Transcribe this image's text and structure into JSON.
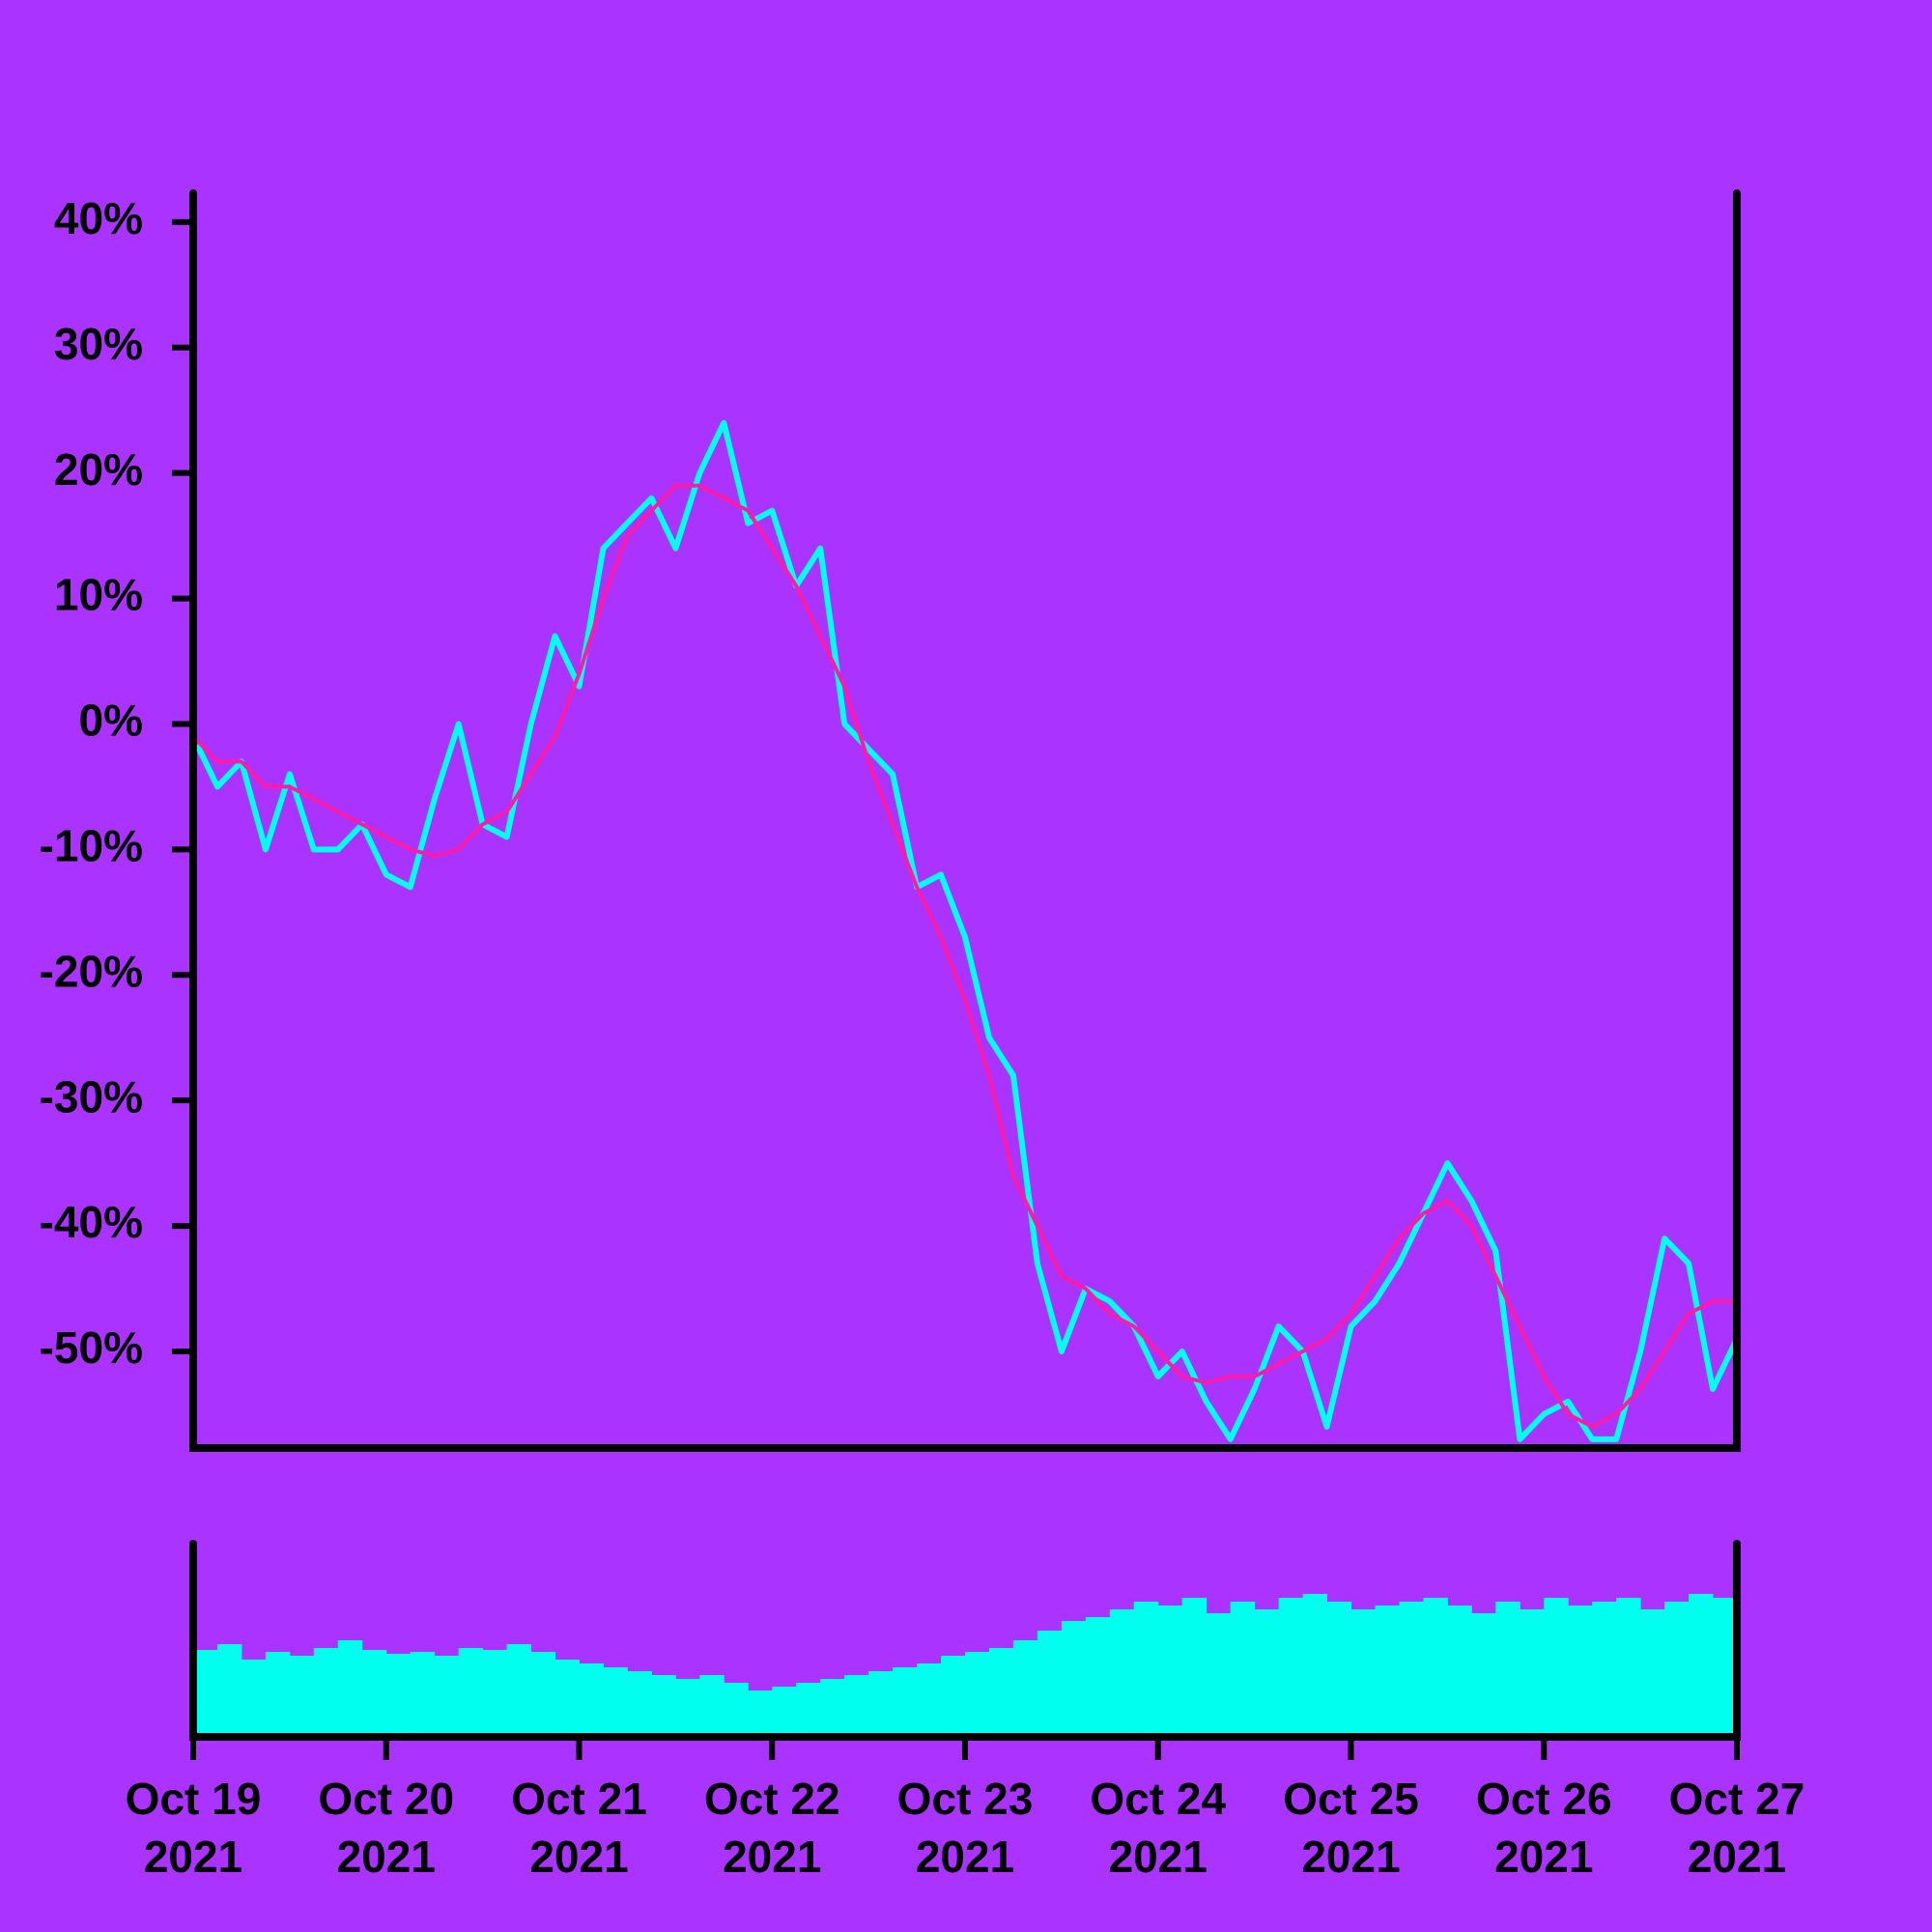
{
  "chart_data": [
    {
      "type": "line",
      "x": [
        "2021-10-19T00:00",
        "2021-10-19T03:00",
        "2021-10-19T06:00",
        "2021-10-19T09:00",
        "2021-10-19T12:00",
        "2021-10-19T15:00",
        "2021-10-19T18:00",
        "2021-10-19T21:00",
        "2021-10-20T00:00",
        "2021-10-20T03:00",
        "2021-10-20T06:00",
        "2021-10-20T09:00",
        "2021-10-20T12:00",
        "2021-10-20T15:00",
        "2021-10-20T18:00",
        "2021-10-20T21:00",
        "2021-10-21T00:00",
        "2021-10-21T03:00",
        "2021-10-21T06:00",
        "2021-10-21T09:00",
        "2021-10-21T12:00",
        "2021-10-21T15:00",
        "2021-10-21T18:00",
        "2021-10-21T21:00",
        "2021-10-22T00:00",
        "2021-10-22T03:00",
        "2021-10-22T06:00",
        "2021-10-22T09:00",
        "2021-10-22T12:00",
        "2021-10-22T15:00",
        "2021-10-22T18:00",
        "2021-10-22T21:00",
        "2021-10-23T00:00",
        "2021-10-23T03:00",
        "2021-10-23T06:00",
        "2021-10-23T09:00",
        "2021-10-23T12:00",
        "2021-10-23T15:00",
        "2021-10-23T18:00",
        "2021-10-23T21:00",
        "2021-10-24T00:00",
        "2021-10-24T03:00",
        "2021-10-24T06:00",
        "2021-10-24T09:00",
        "2021-10-24T12:00",
        "2021-10-24T15:00",
        "2021-10-24T18:00",
        "2021-10-24T21:00",
        "2021-10-25T00:00",
        "2021-10-25T03:00",
        "2021-10-25T06:00",
        "2021-10-25T09:00",
        "2021-10-25T12:00",
        "2021-10-25T15:00",
        "2021-10-25T18:00",
        "2021-10-25T21:00",
        "2021-10-26T00:00",
        "2021-10-26T03:00",
        "2021-10-26T06:00",
        "2021-10-26T09:00",
        "2021-10-26T12:00",
        "2021-10-26T15:00",
        "2021-10-26T18:00",
        "2021-10-26T21:00",
        "2021-10-27T00:00"
      ],
      "series": [
        {
          "color": "#00ffee",
          "values": [
            -1,
            -5,
            -3,
            -10,
            -4,
            -10,
            -10,
            -8,
            -12,
            -13,
            -6,
            0,
            -8,
            -9,
            0,
            7,
            3,
            14,
            16,
            18,
            14,
            20,
            24,
            16,
            17,
            11,
            14,
            0,
            -2,
            -4,
            -13,
            -12,
            -17,
            -25,
            -28,
            -43,
            -50,
            -45,
            -46,
            -48,
            -52,
            -50,
            -54,
            -57,
            -53,
            -48,
            -50,
            -56,
            -48,
            -46,
            -43,
            -39,
            -35,
            -38,
            -42,
            -57,
            -55,
            -54,
            -57,
            -57,
            -50,
            -41,
            -43,
            -53,
            -49
          ]
        },
        {
          "color": "#ff1aa8",
          "values": [
            -1,
            -3,
            -3,
            -5,
            -5,
            -6,
            -7,
            -8,
            -9,
            -10,
            -10.5,
            -10,
            -8,
            -7,
            -4,
            -1,
            4,
            10,
            15,
            17,
            19,
            19,
            18,
            17,
            14,
            11,
            7,
            3,
            -3,
            -8,
            -13,
            -17,
            -22,
            -28,
            -36,
            -40,
            -44,
            -45,
            -47,
            -48,
            -50,
            -52,
            -52.5,
            -52,
            -52,
            -51,
            -50,
            -49,
            -47,
            -44,
            -41,
            -39,
            -38,
            -40,
            -44,
            -48,
            -52,
            -55,
            -56,
            -55,
            -53,
            -50,
            -47,
            -46,
            -46
          ]
        }
      ],
      "xlim": [
        "2021-10-19T00:00",
        "2021-10-27T00:00"
      ],
      "ylim": [
        -57.7,
        42.3
      ],
      "yticks": [
        {
          "value": 40,
          "label": "40%"
        },
        {
          "value": 30,
          "label": "30%"
        },
        {
          "value": 20,
          "label": "20%"
        },
        {
          "value": 10,
          "label": "10%"
        },
        {
          "value": 0,
          "label": "0%"
        },
        {
          "value": -10,
          "label": "-10%"
        },
        {
          "value": -20,
          "label": "-20%"
        },
        {
          "value": -30,
          "label": "-30%"
        },
        {
          "value": -40,
          "label": "-40%"
        },
        {
          "value": -50,
          "label": "-50%"
        }
      ]
    },
    {
      "type": "bar",
      "x": [
        "2021-10-19T00:00",
        "2021-10-19T03:00",
        "2021-10-19T06:00",
        "2021-10-19T09:00",
        "2021-10-19T12:00",
        "2021-10-19T15:00",
        "2021-10-19T18:00",
        "2021-10-19T21:00",
        "2021-10-20T00:00",
        "2021-10-20T03:00",
        "2021-10-20T06:00",
        "2021-10-20T09:00",
        "2021-10-20T12:00",
        "2021-10-20T15:00",
        "2021-10-20T18:00",
        "2021-10-20T21:00",
        "2021-10-21T00:00",
        "2021-10-21T03:00",
        "2021-10-21T06:00",
        "2021-10-21T09:00",
        "2021-10-21T12:00",
        "2021-10-21T15:00",
        "2021-10-21T18:00",
        "2021-10-21T21:00",
        "2021-10-22T00:00",
        "2021-10-22T03:00",
        "2021-10-22T06:00",
        "2021-10-22T09:00",
        "2021-10-22T12:00",
        "2021-10-22T15:00",
        "2021-10-22T18:00",
        "2021-10-22T21:00",
        "2021-10-23T00:00",
        "2021-10-23T03:00",
        "2021-10-23T06:00",
        "2021-10-23T09:00",
        "2021-10-23T12:00",
        "2021-10-23T15:00",
        "2021-10-23T18:00",
        "2021-10-23T21:00",
        "2021-10-24T00:00",
        "2021-10-24T03:00",
        "2021-10-24T06:00",
        "2021-10-24T09:00",
        "2021-10-24T12:00",
        "2021-10-24T15:00",
        "2021-10-24T18:00",
        "2021-10-24T21:00",
        "2021-10-25T00:00",
        "2021-10-25T03:00",
        "2021-10-25T06:00",
        "2021-10-25T09:00",
        "2021-10-25T12:00",
        "2021-10-25T15:00",
        "2021-10-25T18:00",
        "2021-10-25T21:00",
        "2021-10-26T00:00",
        "2021-10-26T03:00",
        "2021-10-26T06:00",
        "2021-10-26T09:00",
        "2021-10-26T12:00",
        "2021-10-26T15:00",
        "2021-10-26T18:00",
        "2021-10-26T21:00"
      ],
      "values": [
        45,
        48,
        40,
        44,
        42,
        46,
        50,
        45,
        43,
        44,
        42,
        46,
        45,
        48,
        44,
        40,
        38,
        36,
        34,
        32,
        30,
        32,
        28,
        24,
        26,
        28,
        30,
        32,
        34,
        36,
        38,
        42,
        44,
        46,
        50,
        55,
        60,
        62,
        66,
        70,
        68,
        72,
        64,
        70,
        66,
        72,
        74,
        70,
        66,
        68,
        70,
        72,
        68,
        64,
        70,
        66,
        72,
        68,
        70,
        72,
        66,
        70,
        74,
        72
      ],
      "color": "#00ffee",
      "xlim": [
        "2021-10-19T00:00",
        "2021-10-27T00:00"
      ],
      "ylim": [
        0,
        100
      ],
      "xticks": [
        {
          "value": "2021-10-19T00:00",
          "label": "Oct 19\n2021"
        },
        {
          "value": "2021-10-20T00:00",
          "label": "Oct 20\n2021"
        },
        {
          "value": "2021-10-21T00:00",
          "label": "Oct 21\n2021"
        },
        {
          "value": "2021-10-22T00:00",
          "label": "Oct 22\n2021"
        },
        {
          "value": "2021-10-23T00:00",
          "label": "Oct 23\n2021"
        },
        {
          "value": "2021-10-24T00:00",
          "label": "Oct 24\n2021"
        },
        {
          "value": "2021-10-25T00:00",
          "label": "Oct 25\n2021"
        },
        {
          "value": "2021-10-26T00:00",
          "label": "Oct 26\n2021"
        },
        {
          "value": "2021-10-27T00:00",
          "label": "Oct 27\n2021"
        }
      ]
    }
  ]
}
